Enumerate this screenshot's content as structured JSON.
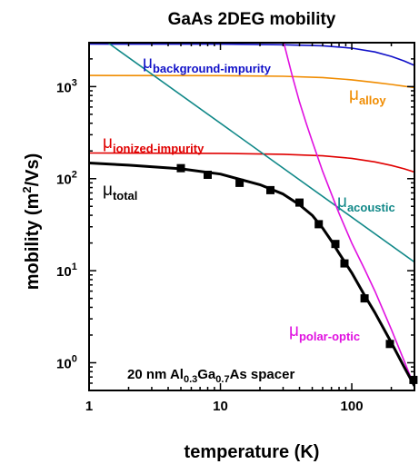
{
  "chart_data": {
    "type": "line",
    "title": "GaAs 2DEG mobility",
    "xlabel": "temperature (K)",
    "ylabel": "mobility (m²/Vs)",
    "xlabel_parts": {
      "main": "temperature (K)"
    },
    "ylabel_parts": {
      "pre": "mobility (m",
      "sup": "2",
      "post": "/Vs)"
    },
    "x_scale": "log",
    "y_scale": "log",
    "xlim": [
      1,
      300
    ],
    "ylim": [
      0.5,
      3000
    ],
    "x_ticks": [
      {
        "value": 1,
        "label": "1"
      },
      {
        "value": 10,
        "label": "10"
      },
      {
        "value": 100,
        "label": "100"
      }
    ],
    "y_ticks": [
      {
        "value": 1,
        "base": "10",
        "exp": "0"
      },
      {
        "value": 10,
        "base": "10",
        "exp": "1"
      },
      {
        "value": 100,
        "base": "10",
        "exp": "2"
      },
      {
        "value": 1000,
        "base": "10",
        "exp": "3"
      }
    ],
    "grid": false,
    "annotation": {
      "parts": [
        {
          "text": "20 nm Al"
        },
        {
          "text": "0.3",
          "sub": true
        },
        {
          "text": "Ga"
        },
        {
          "text": "0.7",
          "sub": true
        },
        {
          "text": "As spacer"
        }
      ]
    },
    "series": [
      {
        "key": "background",
        "symbol": "μ",
        "subscript": "background-impurity",
        "color": "#1010c8",
        "x": [
          1,
          10,
          30,
          60,
          100,
          150,
          200,
          250,
          300
        ],
        "y": [
          2900,
          2890,
          2850,
          2780,
          2620,
          2380,
          2130,
          1900,
          1700
        ]
      },
      {
        "key": "alloy",
        "symbol": "μ",
        "subscript": "alloy",
        "color": "#f08c00",
        "x": [
          1,
          10,
          30,
          60,
          100,
          150,
          200,
          250,
          300
        ],
        "y": [
          1320,
          1315,
          1295,
          1255,
          1185,
          1110,
          1055,
          1010,
          975
        ]
      },
      {
        "key": "ionized",
        "symbol": "μ",
        "subscript": "ionized-impurity",
        "color": "#e00000",
        "x": [
          1,
          10,
          30,
          60,
          100,
          150,
          200,
          250,
          300
        ],
        "y": [
          190,
          188,
          184,
          177,
          166,
          152,
          139,
          128,
          118
        ]
      },
      {
        "key": "acoustic",
        "symbol": "μ",
        "subscript": "acoustic",
        "color": "#108888",
        "x": [
          1,
          300
        ],
        "y": [
          4200,
          12.4
        ]
      },
      {
        "key": "polar",
        "symbol": "μ",
        "subscript": "polar-optic",
        "color": "#e010e0",
        "x": [
          30,
          35,
          40,
          45,
          50,
          60,
          70,
          80,
          100,
          125,
          150,
          200,
          250,
          300
        ],
        "y": [
          3200,
          1350,
          680,
          400,
          255,
          120,
          68,
          42,
          20,
          10.4,
          6.0,
          2.3,
          1.05,
          0.55
        ]
      },
      {
        "key": "total",
        "symbol": "μ",
        "subscript": "total",
        "color": "#000000",
        "x": [
          1,
          2,
          5,
          10,
          20,
          30,
          40,
          50,
          60,
          70,
          80,
          100,
          125,
          150,
          200,
          250,
          300
        ],
        "y": [
          148,
          140,
          128,
          112,
          86,
          68,
          52,
          40,
          29,
          21,
          15.5,
          9.5,
          5.4,
          3.5,
          1.65,
          0.9,
          0.56
        ]
      }
    ],
    "data_points": {
      "name": "measured",
      "x": [
        5,
        8,
        14,
        24,
        40,
        56,
        75,
        88,
        125,
        195,
        295
      ],
      "y": [
        130,
        110,
        90,
        75,
        55,
        32,
        19.5,
        12,
        5,
        1.6,
        0.65
      ]
    }
  }
}
